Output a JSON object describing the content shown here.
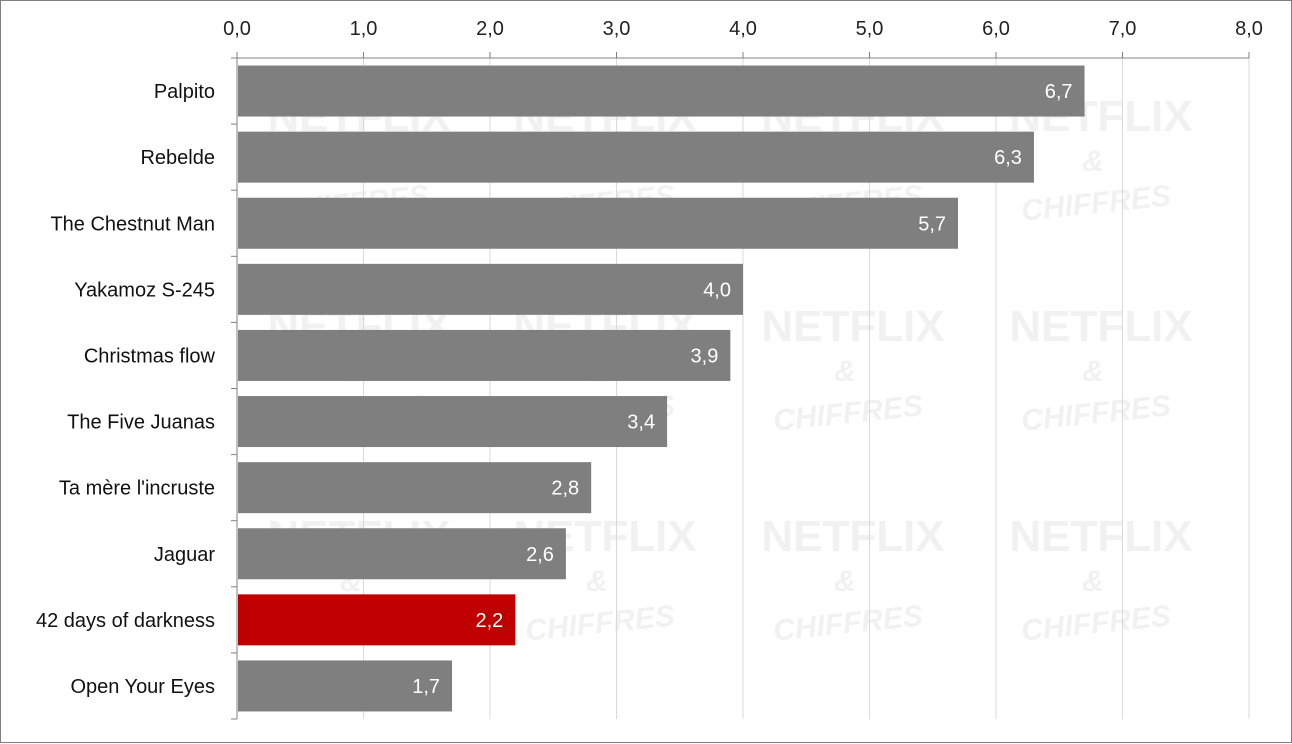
{
  "chart_data": {
    "type": "bar",
    "orientation": "horizontal",
    "categories": [
      "Palpito",
      "Rebelde",
      "The Chestnut Man",
      "Yakamoz S-245",
      "Christmas flow",
      "The Five Juanas",
      "Ta mère l'incruste",
      "Jaguar",
      "42 days of darkness",
      "Open Your Eyes"
    ],
    "values": [
      6.7,
      6.3,
      5.7,
      4.0,
      3.9,
      3.4,
      2.8,
      2.6,
      2.2,
      1.7
    ],
    "value_labels": [
      "6,7",
      "6,3",
      "5,7",
      "4,0",
      "3,9",
      "3,4",
      "2,8",
      "2,6",
      "2,2",
      "1,7"
    ],
    "highlight_index": 8,
    "xlim": [
      0,
      8
    ],
    "x_ticks": [
      0,
      1,
      2,
      3,
      4,
      5,
      6,
      7,
      8
    ],
    "x_tick_labels": [
      "0,0",
      "1,0",
      "2,0",
      "3,0",
      "4,0",
      "5,0",
      "6,0",
      "7,0",
      "8,0"
    ],
    "x_axis_position": "top",
    "grid": true,
    "legend": "none",
    "title": "",
    "xlabel": "",
    "ylabel": "",
    "colors": {
      "bar": "#7f7f7f",
      "highlight": "#c00000",
      "grid": "#d9d9d9",
      "axis": "#808080"
    },
    "watermark": {
      "main": "NETFLIX",
      "amp": "&",
      "sub": "CHIFFRES"
    }
  }
}
